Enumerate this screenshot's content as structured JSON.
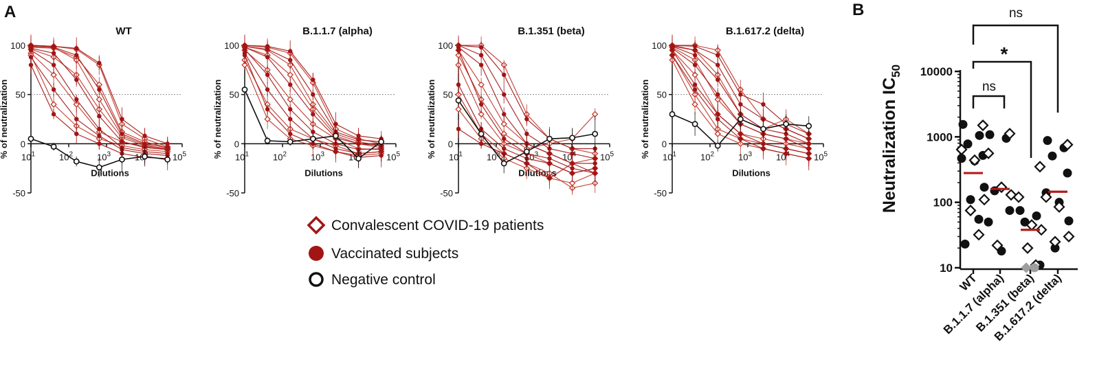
{
  "panel_a": {
    "label": "A",
    "legend": [
      {
        "label": "Convalescent COVID-19 patients",
        "marker": "diamond-open"
      },
      {
        "label": "Vaccinated subjects",
        "marker": "circle-filled"
      },
      {
        "label": "Negative control",
        "marker": "circle-open"
      }
    ]
  },
  "panel_b": {
    "label": "B",
    "ylabel": "Neutralization IC",
    "ylabel_sub": "50",
    "comparisons": [
      {
        "from": "WT",
        "to": "B.1.1.7 (alpha)",
        "label": "ns"
      },
      {
        "from": "WT",
        "to": "B.1.351 (beta)",
        "label": "*"
      },
      {
        "from": "WT",
        "to": "B.1.617.2 (delta)",
        "label": "ns"
      }
    ]
  },
  "colors": {
    "patient": "#c0392b",
    "vaccinated": "#a31515",
    "control": "#111111",
    "median": "#b01c1c",
    "dots_b": "#111111",
    "below_limit": "#9e9e9e",
    "reference_line": "#8c8c8c"
  },
  "chart_data": [
    {
      "type": "line",
      "panel": "A",
      "title": "WT",
      "xlabel": "Dilutions",
      "ylabel": "% of neutralization",
      "x_scale": "log10",
      "xlim": [
        10,
        100000
      ],
      "ylim": [
        -50,
        100
      ],
      "y_ticks": [
        -50,
        0,
        50,
        100
      ],
      "x_ticks": [
        {
          "base": "10",
          "exp": "1"
        },
        {
          "base": "10",
          "exp": "2"
        },
        {
          "base": "10",
          "exp": "3"
        },
        {
          "base": "10",
          "exp": "4"
        },
        {
          "base": "10",
          "exp": "5"
        }
      ],
      "reference_line": 50,
      "x": [
        10,
        40,
        160,
        640,
        2560,
        10240,
        40960
      ],
      "series": [
        {
          "name": "Negative control",
          "group": "control",
          "values": [
            5,
            -3,
            -18,
            -24,
            -16,
            -13,
            -16
          ],
          "err": [
            18,
            4,
            5,
            10,
            12,
            10,
            5
          ]
        },
        {
          "name": "Convalescent 1",
          "group": "patient",
          "values": [
            100,
            99,
            96,
            80,
            20,
            5,
            -3
          ]
        },
        {
          "name": "Convalescent 2",
          "group": "patient",
          "values": [
            98,
            97,
            88,
            60,
            12,
            2,
            -4
          ]
        },
        {
          "name": "Convalescent 3",
          "group": "patient",
          "values": [
            96,
            88,
            70,
            35,
            6,
            -2,
            -5
          ]
        },
        {
          "name": "Convalescent 4",
          "group": "patient",
          "values": [
            92,
            70,
            40,
            12,
            2,
            -4,
            -6
          ]
        },
        {
          "name": "Convalescent 5",
          "group": "patient",
          "values": [
            90,
            40,
            18,
            5,
            -2,
            -6,
            -8
          ]
        },
        {
          "name": "Convalescent 6",
          "group": "patient",
          "values": [
            99,
            98,
            85,
            45,
            8,
            -1,
            -6
          ]
        },
        {
          "name": "Vaccinated 1",
          "group": "vaccinated",
          "values": [
            100,
            99,
            97,
            82,
            25,
            8,
            0
          ]
        },
        {
          "name": "Vaccinated 2",
          "group": "vaccinated",
          "values": [
            99,
            98,
            90,
            55,
            10,
            0,
            -4
          ]
        },
        {
          "name": "Vaccinated 3",
          "group": "vaccinated",
          "values": [
            97,
            92,
            65,
            28,
            2,
            -3,
            -6
          ]
        },
        {
          "name": "Vaccinated 4",
          "group": "vaccinated",
          "values": [
            95,
            80,
            45,
            15,
            -4,
            -8,
            -10
          ]
        },
        {
          "name": "Vaccinated 5",
          "group": "vaccinated",
          "values": [
            88,
            55,
            25,
            8,
            -6,
            -10,
            -12
          ]
        },
        {
          "name": "Vaccinated 6",
          "group": "vaccinated",
          "values": [
            80,
            30,
            10,
            0,
            -10,
            -14,
            -15
          ]
        }
      ]
    },
    {
      "type": "line",
      "panel": "A",
      "title": "B.1.1.7 (alpha)",
      "xlabel": "Dilutions",
      "ylabel": "% of neutralization",
      "x_scale": "log10",
      "xlim": [
        10,
        100000
      ],
      "ylim": [
        -50,
        100
      ],
      "y_ticks": [
        -50,
        0,
        50,
        100
      ],
      "x_ticks": [
        {
          "base": "10",
          "exp": "1"
        },
        {
          "base": "10",
          "exp": "2"
        },
        {
          "base": "10",
          "exp": "3"
        },
        {
          "base": "10",
          "exp": "4"
        },
        {
          "base": "10",
          "exp": "5"
        }
      ],
      "reference_line": 50,
      "x": [
        10,
        40,
        160,
        640,
        2560,
        10240,
        40960
      ],
      "series": [
        {
          "name": "Negative control",
          "group": "control",
          "values": [
            55,
            3,
            2,
            5,
            8,
            -15,
            2
          ],
          "err": [
            4,
            4,
            4,
            5,
            8,
            10,
            6
          ]
        },
        {
          "name": "Convalescent 1",
          "group": "patient",
          "values": [
            100,
            98,
            92,
            62,
            15,
            5,
            0
          ]
        },
        {
          "name": "Convalescent 2",
          "group": "patient",
          "values": [
            98,
            90,
            70,
            35,
            8,
            0,
            -4
          ]
        },
        {
          "name": "Convalescent 3",
          "group": "patient",
          "values": [
            95,
            75,
            45,
            20,
            5,
            -5,
            -6
          ]
        },
        {
          "name": "Convalescent 4",
          "group": "patient",
          "values": [
            85,
            40,
            15,
            5,
            -2,
            -10,
            -8
          ]
        },
        {
          "name": "Convalescent 5",
          "group": "patient",
          "values": [
            80,
            25,
            5,
            -2,
            -8,
            -12,
            -10
          ]
        },
        {
          "name": "Convalescent 6",
          "group": "patient",
          "values": [
            99,
            95,
            80,
            40,
            10,
            2,
            -2
          ]
        },
        {
          "name": "Vaccinated 1",
          "group": "vaccinated",
          "values": [
            100,
            99,
            94,
            65,
            20,
            8,
            5
          ]
        },
        {
          "name": "Vaccinated 2",
          "group": "vaccinated",
          "values": [
            99,
            96,
            85,
            50,
            12,
            4,
            2
          ]
        },
        {
          "name": "Vaccinated 3",
          "group": "vaccinated",
          "values": [
            98,
            88,
            60,
            30,
            6,
            0,
            -2
          ]
        },
        {
          "name": "Vaccinated 4",
          "group": "vaccinated",
          "values": [
            96,
            70,
            35,
            12,
            0,
            -6,
            -5
          ]
        },
        {
          "name": "Vaccinated 5",
          "group": "vaccinated",
          "values": [
            92,
            55,
            25,
            5,
            -5,
            -10,
            -8
          ]
        },
        {
          "name": "Vaccinated 6",
          "group": "vaccinated",
          "values": [
            90,
            35,
            10,
            0,
            -8,
            -14,
            -12
          ]
        }
      ]
    },
    {
      "type": "line",
      "panel": "A",
      "title": "B.1.351 (beta)",
      "xlabel": "Dilutions",
      "ylabel": "% of neutralization",
      "x_scale": "log10",
      "xlim": [
        10,
        100000
      ],
      "ylim": [
        -50,
        100
      ],
      "y_ticks": [
        -50,
        0,
        50,
        100
      ],
      "x_ticks": [
        {
          "base": "10",
          "exp": "1"
        },
        {
          "base": "10",
          "exp": "2"
        },
        {
          "base": "10",
          "exp": "3"
        },
        {
          "base": "10",
          "exp": "4"
        },
        {
          "base": "10",
          "exp": "5"
        }
      ],
      "reference_line": 50,
      "x": [
        10,
        40,
        160,
        640,
        2560,
        10240,
        40960
      ],
      "series": [
        {
          "name": "Negative control",
          "group": "control",
          "values": [
            44,
            10,
            -20,
            -8,
            5,
            6,
            10
          ],
          "err": [
            4,
            8,
            10,
            10,
            10,
            10,
            18
          ]
        },
        {
          "name": "Convalescent 1",
          "group": "patient",
          "values": [
            100,
            100,
            80,
            30,
            5,
            -5,
            -10
          ]
        },
        {
          "name": "Convalescent 2",
          "group": "patient",
          "values": [
            95,
            60,
            20,
            0,
            -10,
            -20,
            -15
          ]
        },
        {
          "name": "Convalescent 3",
          "group": "patient",
          "values": [
            80,
            30,
            0,
            -10,
            -20,
            -30,
            -25
          ]
        },
        {
          "name": "Convalescent 4",
          "group": "patient",
          "values": [
            50,
            10,
            -10,
            -20,
            -30,
            -45,
            -40
          ]
        },
        {
          "name": "Convalescent 5",
          "group": "patient",
          "values": [
            35,
            5,
            -15,
            -25,
            -35,
            -40,
            -30
          ]
        },
        {
          "name": "Convalescent 6",
          "group": "patient",
          "values": [
            90,
            45,
            10,
            -5,
            0,
            5,
            30
          ]
        },
        {
          "name": "Vaccinated 1",
          "group": "vaccinated",
          "values": [
            100,
            98,
            70,
            25,
            5,
            -5,
            -5
          ]
        },
        {
          "name": "Vaccinated 2",
          "group": "vaccinated",
          "values": [
            100,
            90,
            50,
            10,
            -5,
            -10,
            -15
          ]
        },
        {
          "name": "Vaccinated 3",
          "group": "vaccinated",
          "values": [
            98,
            80,
            30,
            0,
            -10,
            -20,
            -20
          ]
        },
        {
          "name": "Vaccinated 4",
          "group": "vaccinated",
          "values": [
            95,
            40,
            5,
            -10,
            -15,
            -25,
            -30
          ]
        },
        {
          "name": "Vaccinated 5",
          "group": "vaccinated",
          "values": [
            60,
            15,
            -5,
            -15,
            -20,
            -30,
            -25
          ]
        },
        {
          "name": "Vaccinated 6",
          "group": "vaccinated",
          "values": [
            15,
            0,
            -10,
            -20,
            -35,
            -20,
            -30
          ]
        }
      ]
    },
    {
      "type": "line",
      "panel": "A",
      "title": "B.1.617.2 (delta)",
      "xlabel": "Dilutions",
      "ylabel": "% of neutralization",
      "x_scale": "log10",
      "xlim": [
        10,
        100000
      ],
      "ylim": [
        -50,
        100
      ],
      "y_ticks": [
        -50,
        0,
        50,
        100
      ],
      "x_ticks": [
        {
          "base": "10",
          "exp": "1"
        },
        {
          "base": "10",
          "exp": "2"
        },
        {
          "base": "10",
          "exp": "3"
        },
        {
          "base": "10",
          "exp": "4"
        },
        {
          "base": "10",
          "exp": "5"
        }
      ],
      "reference_line": 50,
      "x": [
        10,
        40,
        160,
        640,
        2560,
        10240,
        40960
      ],
      "series": [
        {
          "name": "Negative control",
          "group": "control",
          "values": [
            30,
            20,
            -2,
            25,
            15,
            20,
            18
          ],
          "err": [
            3,
            12,
            6,
            10,
            10,
            10,
            10
          ]
        },
        {
          "name": "Convalescent 1",
          "group": "patient",
          "values": [
            100,
            100,
            95,
            55,
            25,
            15,
            5
          ]
        },
        {
          "name": "Convalescent 2",
          "group": "patient",
          "values": [
            98,
            85,
            45,
            20,
            10,
            5,
            0
          ]
        },
        {
          "name": "Convalescent 3",
          "group": "patient",
          "values": [
            95,
            70,
            30,
            10,
            5,
            0,
            -5
          ]
        },
        {
          "name": "Convalescent 4",
          "group": "patient",
          "values": [
            90,
            50,
            15,
            5,
            0,
            -5,
            -10
          ]
        },
        {
          "name": "Convalescent 5",
          "group": "patient",
          "values": [
            85,
            40,
            10,
            0,
            -5,
            -10,
            -15
          ]
        },
        {
          "name": "Convalescent 6",
          "group": "patient",
          "values": [
            99,
            95,
            70,
            30,
            15,
            25,
            10
          ]
        },
        {
          "name": "Vaccinated 1",
          "group": "vaccinated",
          "values": [
            100,
            99,
            90,
            50,
            40,
            20,
            10
          ]
        },
        {
          "name": "Vaccinated 2",
          "group": "vaccinated",
          "values": [
            100,
            95,
            80,
            40,
            25,
            15,
            5
          ]
        },
        {
          "name": "Vaccinated 3",
          "group": "vaccinated",
          "values": [
            99,
            90,
            65,
            30,
            15,
            10,
            0
          ]
        },
        {
          "name": "Vaccinated 4",
          "group": "vaccinated",
          "values": [
            97,
            80,
            50,
            20,
            10,
            5,
            -5
          ]
        },
        {
          "name": "Vaccinated 5",
          "group": "vaccinated",
          "values": [
            95,
            60,
            30,
            10,
            0,
            -5,
            -10
          ]
        },
        {
          "name": "Vaccinated 6",
          "group": "vaccinated",
          "values": [
            90,
            55,
            25,
            5,
            -5,
            -10,
            -15
          ]
        }
      ]
    },
    {
      "type": "scatter",
      "panel": "B",
      "ylabel": "Neutralization IC50",
      "y_scale": "log10",
      "ylim": [
        10,
        10000
      ],
      "y_ticks": [
        10,
        100,
        1000,
        10000
      ],
      "categories": [
        "WT",
        "B.1.1.7 (alpha)",
        "B.1.351 (beta)",
        "B.1.617.2 (delta)"
      ],
      "groups": [
        {
          "category": "WT",
          "median": 280,
          "vaccinated": [
            1550,
            1050,
            780,
            520,
            470,
            430,
            170,
            110,
            55,
            23
          ],
          "convalescent": [
            1500,
            640,
            440,
            110,
            75,
            32
          ],
          "below_limit": []
        },
        {
          "category": "B.1.1.7 (alpha)",
          "median": 160,
          "vaccinated": [
            1080,
            950,
            150,
            75,
            50,
            18
          ],
          "convalescent": [
            1120,
            560,
            170,
            130,
            22
          ],
          "below_limit": []
        },
        {
          "category": "B.1.351 (beta)",
          "median": 38,
          "vaccinated": [
            75,
            62,
            50,
            11
          ],
          "convalescent": [
            350,
            120,
            45,
            38,
            20,
            11
          ],
          "below_limit": [
            10,
            10
          ]
        },
        {
          "category": "B.1.617.2 (delta)",
          "median": 145,
          "vaccinated": [
            880,
            680,
            510,
            280,
            140,
            100,
            52,
            20
          ],
          "convalescent": [
            760,
            120,
            85,
            30,
            25
          ],
          "below_limit": []
        }
      ]
    }
  ]
}
